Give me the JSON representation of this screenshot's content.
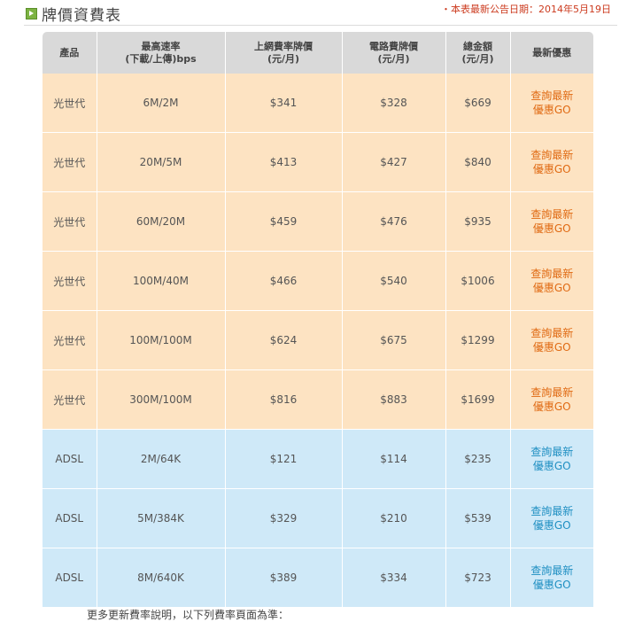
{
  "section": {
    "title": "牌價資費表",
    "icon": "play-square-icon",
    "announce": "・本表最新公告日期：2014年5月19日"
  },
  "colors": {
    "fiber_row": "#fde3c2",
    "adsl_row": "#cfe9f8",
    "header": "#d9d9d9",
    "fiber_promo": "#e06a13",
    "adsl_promo": "#1f8fc2",
    "announce": "#cc3b1f"
  },
  "table": {
    "headers": [
      {
        "line1": "產品",
        "line2": ""
      },
      {
        "line1": "最高速率",
        "line2": "(下載/上傳)bps"
      },
      {
        "line1": "上網費率牌價",
        "line2": "(元/月)"
      },
      {
        "line1": "電路費牌價",
        "line2": "(元/月)"
      },
      {
        "line1": "總金額",
        "line2": "(元/月)"
      },
      {
        "line1": "最新優惠",
        "line2": ""
      }
    ],
    "rows": [
      {
        "type": "fiber",
        "product": "光世代",
        "speed": "6M/2M",
        "internet": "$341",
        "circuit": "$328",
        "total": "$669",
        "promo1": "查詢最新",
        "promo2": "優惠GO"
      },
      {
        "type": "fiber",
        "product": "光世代",
        "speed": "20M/5M",
        "internet": "$413",
        "circuit": "$427",
        "total": "$840",
        "promo1": "查詢最新",
        "promo2": "優惠GO"
      },
      {
        "type": "fiber",
        "product": "光世代",
        "speed": "60M/20M",
        "internet": "$459",
        "circuit": "$476",
        "total": "$935",
        "promo1": "查詢最新",
        "promo2": "優惠GO"
      },
      {
        "type": "fiber",
        "product": "光世代",
        "speed": "100M/40M",
        "internet": "$466",
        "circuit": "$540",
        "total": "$1006",
        "promo1": "查詢最新",
        "promo2": "優惠GO"
      },
      {
        "type": "fiber",
        "product": "光世代",
        "speed": "100M/100M",
        "internet": "$624",
        "circuit": "$675",
        "total": "$1299",
        "promo1": "查詢最新",
        "promo2": "優惠GO"
      },
      {
        "type": "fiber",
        "product": "光世代",
        "speed": "300M/100M",
        "internet": "$816",
        "circuit": "$883",
        "total": "$1699",
        "promo1": "查詢最新",
        "promo2": "優惠GO"
      },
      {
        "type": "adsl",
        "product": "ADSL",
        "speed": "2M/64K",
        "internet": "$121",
        "circuit": "$114",
        "total": "$235",
        "promo1": "查詢最新",
        "promo2": "優惠GO"
      },
      {
        "type": "adsl",
        "product": "ADSL",
        "speed": "5M/384K",
        "internet": "$329",
        "circuit": "$210",
        "total": "$539",
        "promo1": "查詢最新",
        "promo2": "優惠GO"
      },
      {
        "type": "adsl",
        "product": "ADSL",
        "speed": "8M/640K",
        "internet": "$389",
        "circuit": "$334",
        "total": "$723",
        "promo1": "查詢最新",
        "promo2": "優惠GO"
      }
    ]
  },
  "footer": {
    "note": "更多更新費率說明，以下列費率頁面為準："
  }
}
